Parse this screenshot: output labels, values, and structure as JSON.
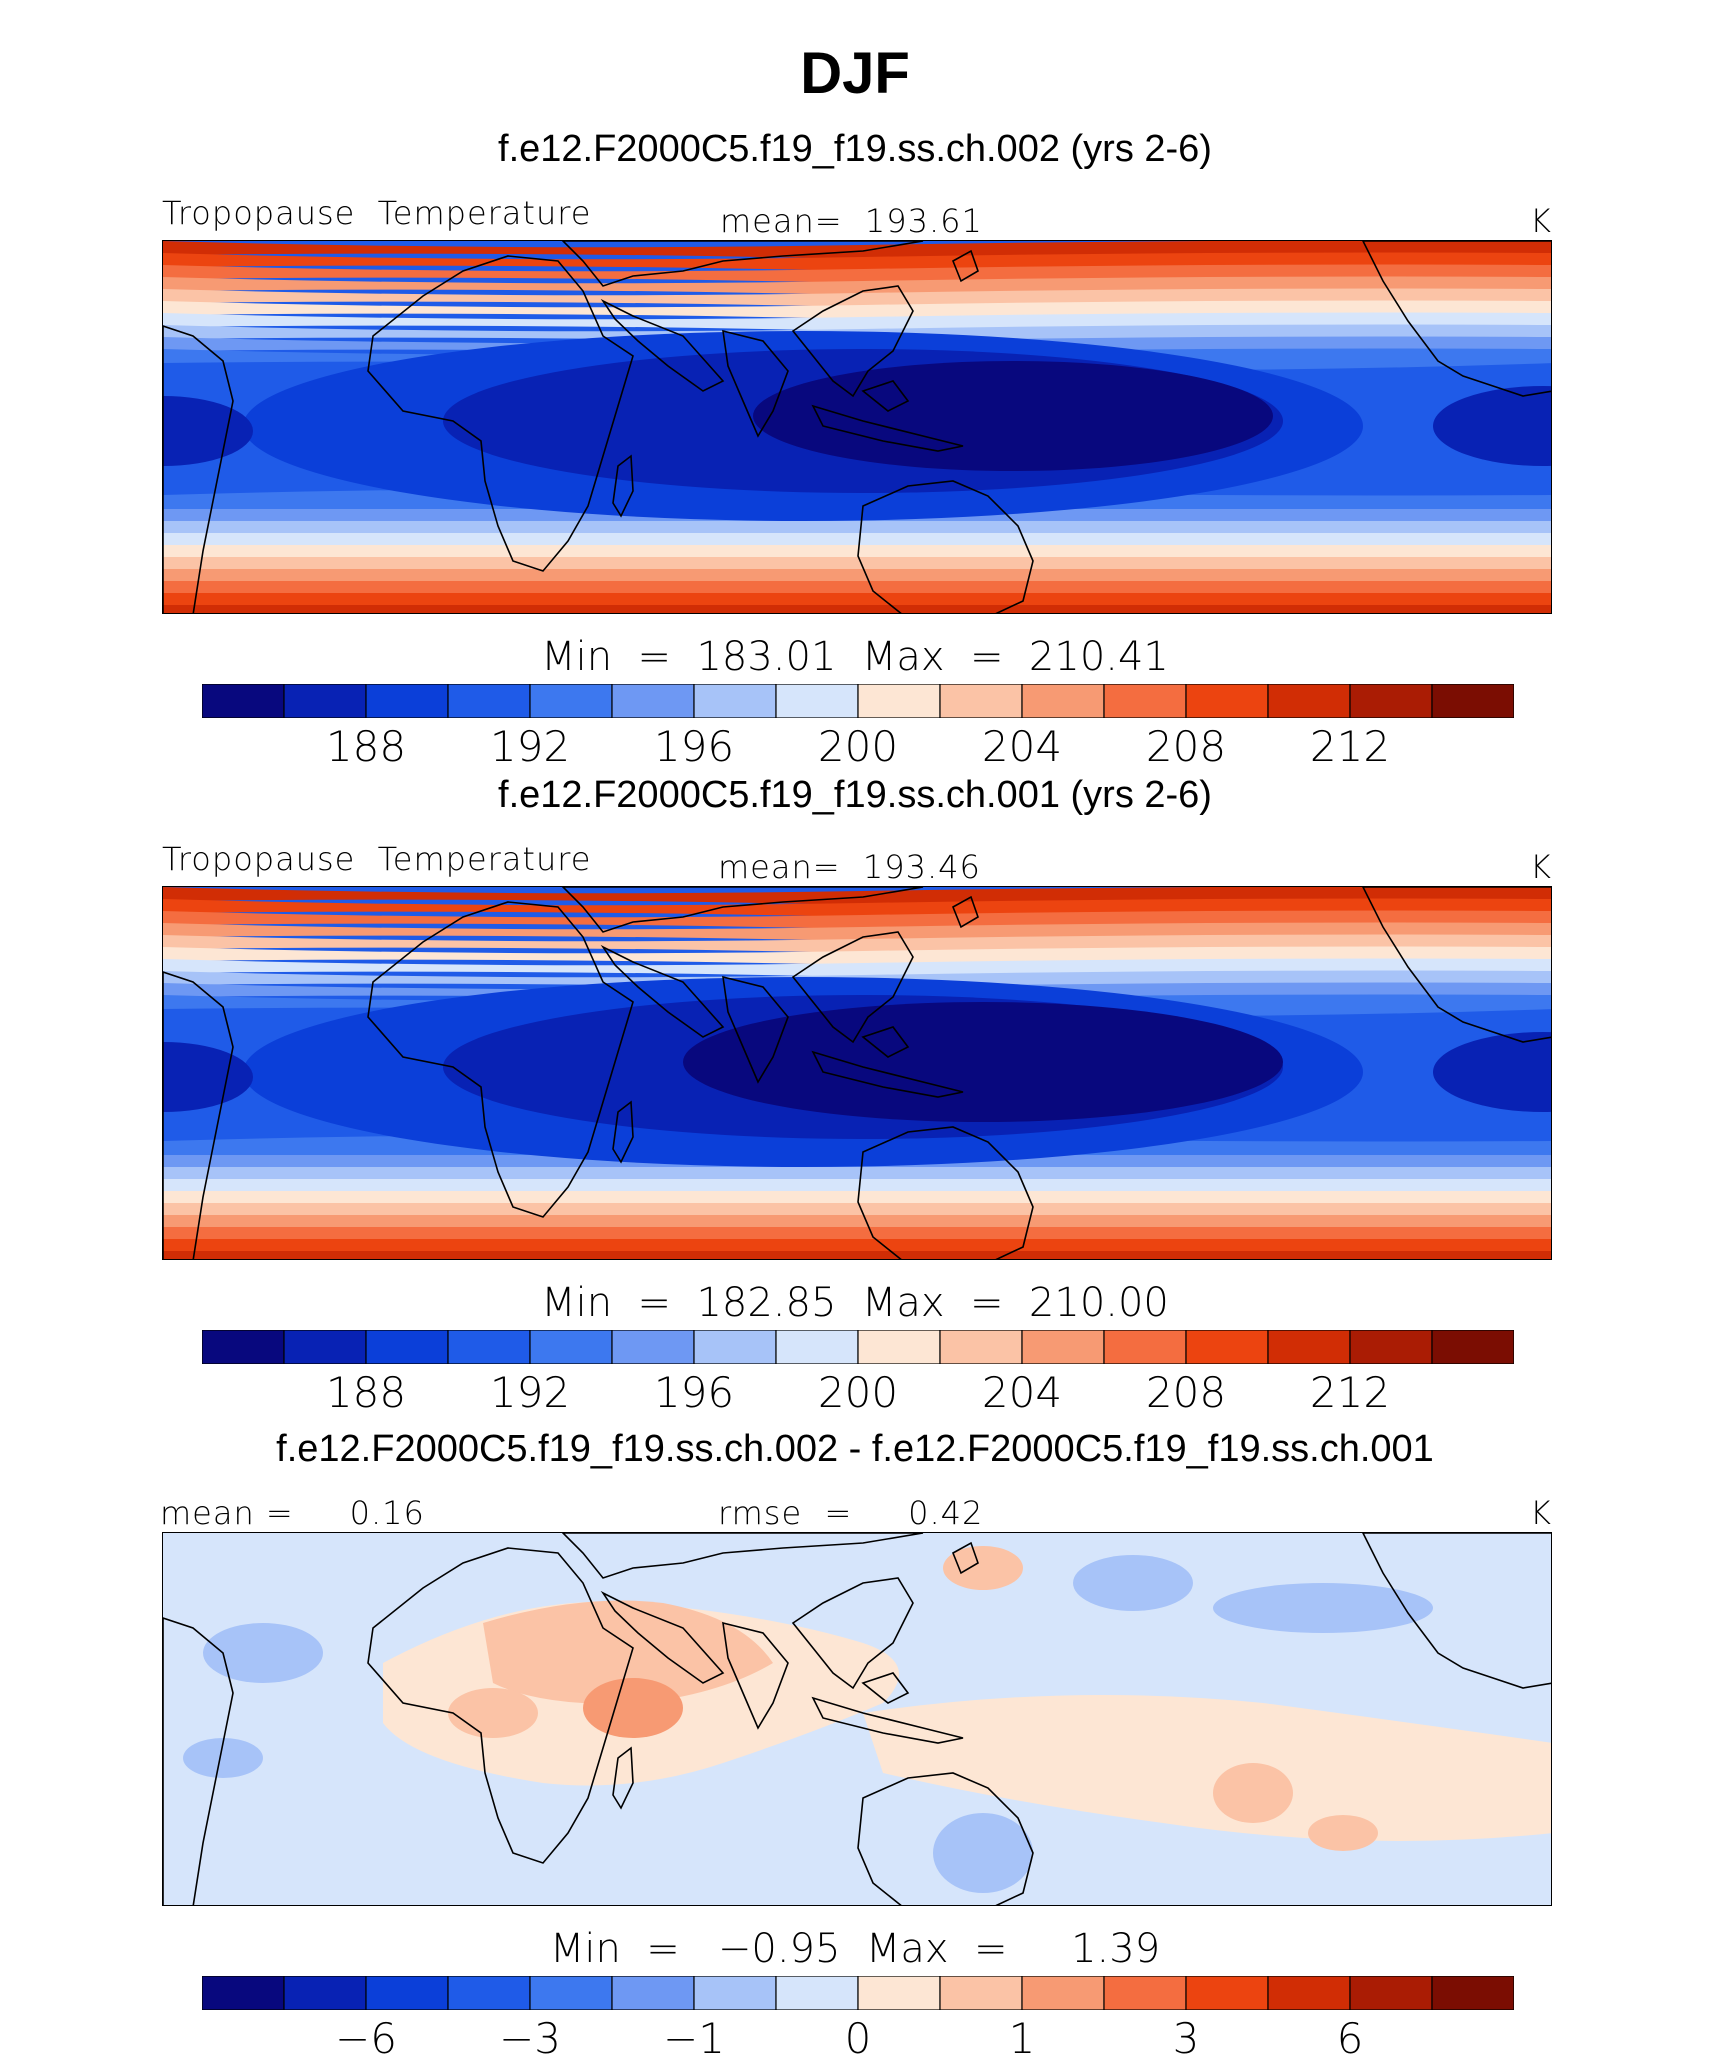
{
  "title": "DJF",
  "palette": [
    "#08087e",
    "#0822b4",
    "#0b3fd9",
    "#1f5be8",
    "#3d78ef",
    "#6e98f3",
    "#a7c3f8",
    "#d6e5fb",
    "#fde6d4",
    "#fbc3a6",
    "#f79a73",
    "#f46d40",
    "#ec4410",
    "#d12d05",
    "#aa1c04",
    "#7b0d02"
  ],
  "panels": [
    {
      "title": "f.e12.F2000C5.f19_f19.ss.ch.002 (yrs 2-6)",
      "left_label": "Tropopause  Temperature",
      "center_label": "mean=  193.61",
      "units": "K",
      "minmax": "Min  =  183.01  Max  =  210.41",
      "ticks": [
        "188",
        "192",
        "196",
        "200",
        "204",
        "208",
        "212"
      ]
    },
    {
      "title": "f.e12.F2000C5.f19_f19.ss.ch.001 (yrs 2-6)",
      "left_label": "Tropopause  Temperature",
      "center_label": "mean=  193.46",
      "units": "K",
      "minmax": "Min  =  182.85  Max  =  210.00",
      "ticks": [
        "188",
        "192",
        "196",
        "200",
        "204",
        "208",
        "212"
      ]
    },
    {
      "title": "f.e12.F2000C5.f19_f19.ss.ch.002 - f.e12.F2000C5.f19_f19.ss.ch.001",
      "left_label": "mean =     0.16",
      "center_label": "rmse  =     0.42",
      "units": "K",
      "minmax": "Min  =   −0.95  Max  =     1.39",
      "ticks": [
        "−6",
        "−3",
        "−1",
        "0",
        "1",
        "3",
        "6"
      ]
    }
  ],
  "chart_data": [
    {
      "type": "heatmap",
      "title": "f.e12.F2000C5.f19_f19.ss.ch.002 (yrs 2-6)",
      "variable": "Tropopause Temperature",
      "units": "K",
      "mean": 193.61,
      "min": 183.01,
      "max": 210.41,
      "colorbar_levels": [
        186,
        188,
        190,
        192,
        194,
        196,
        198,
        200,
        202,
        204,
        206,
        208,
        210,
        212,
        214
      ],
      "colorbar_tick_labels": [
        188,
        192,
        196,
        200,
        204,
        208,
        212
      ]
    },
    {
      "type": "heatmap",
      "title": "f.e12.F2000C5.f19_f19.ss.ch.001 (yrs 2-6)",
      "variable": "Tropopause Temperature",
      "units": "K",
      "mean": 193.46,
      "min": 182.85,
      "max": 210.0,
      "colorbar_levels": [
        186,
        188,
        190,
        192,
        194,
        196,
        198,
        200,
        202,
        204,
        206,
        208,
        210,
        212,
        214
      ],
      "colorbar_tick_labels": [
        188,
        192,
        196,
        200,
        204,
        208,
        212
      ]
    },
    {
      "type": "heatmap",
      "title": "f.e12.F2000C5.f19_f19.ss.ch.002 - f.e12.F2000C5.f19_f19.ss.ch.001",
      "units": "K",
      "mean": 0.16,
      "rmse": 0.42,
      "min": -0.95,
      "max": 1.39,
      "colorbar_levels": [
        -8,
        -6,
        -4,
        -3,
        -2,
        -1,
        -0.5,
        0,
        0.5,
        1,
        2,
        3,
        4,
        6,
        8
      ],
      "colorbar_tick_labels": [
        -6,
        -3,
        -1,
        0,
        1,
        3,
        6
      ]
    }
  ]
}
